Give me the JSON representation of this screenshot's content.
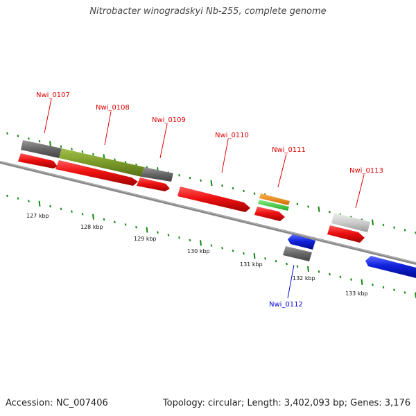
{
  "title": "Nitrobacter winogradskyi Nb-255, complete genome",
  "footer": {
    "accession": "Accession: NC_007406",
    "stats": "Topology: circular; Length: 3,402,093 bp; Genes: 3,176"
  },
  "ruler_labels": [
    "127 kbp",
    "128 kbp",
    "129 kbp",
    "130 kbp",
    "131 kbp",
    "132 kbp",
    "133 kbp"
  ],
  "gene_labels": [
    {
      "text": "Nwi_0107",
      "color": "#dd0000"
    },
    {
      "text": "Nwi_0108",
      "color": "#dd0000"
    },
    {
      "text": "Nwi_0109",
      "color": "#dd0000"
    },
    {
      "text": "Nwi_0110",
      "color": "#dd0000"
    },
    {
      "text": "Nwi_0111",
      "color": "#dd0000"
    },
    {
      "text": "Nwi_0113",
      "color": "#dd0000"
    },
    {
      "text": "Nwi_0112",
      "color": "#0000dd"
    }
  ],
  "colors": {
    "forward_gene": "#ee1111",
    "reverse_gene": "#1122dd",
    "backbone": "#888888",
    "ticks": "#118811",
    "feature_gray": "#666666",
    "feature_olive": "#7a9a28",
    "feature_orange": "#f08a10",
    "feature_green": "#44cc44",
    "feature_lightgray": "#cccccc"
  }
}
